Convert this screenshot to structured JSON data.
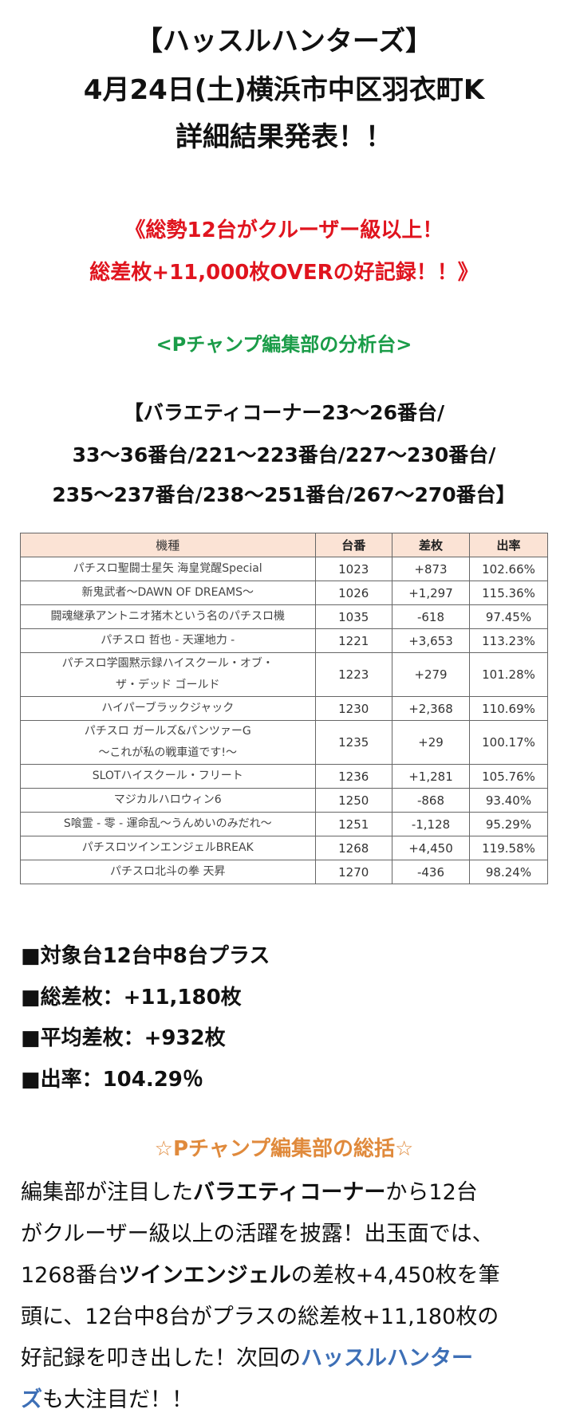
{
  "header": {
    "lines": [
      "【ハッスルハンターズ】",
      "4月24日(土)横浜市中区羽衣町K",
      "詳細結果発表！！"
    ]
  },
  "highlight": {
    "lines": [
      "《総勢12台がクルーザー級以上！",
      "総差枚+11,000枚OVERの好記録！！》"
    ]
  },
  "analysis_label": "<Pチャンプ編集部の分析台>",
  "corner": {
    "lines": [
      "【バラエティコーナー23～26番台/",
      "33～36番台/221～223番台/227～230番台/",
      "235～237番台/238～251番台/267～270番台】"
    ]
  },
  "table": {
    "columns": [
      "機種",
      "台番",
      "差枚",
      "出率"
    ],
    "rows": [
      {
        "name": [
          "パチスロ聖闘士星矢 海皇覚醒Special"
        ],
        "no": "1023",
        "diff": "+873",
        "rate": "102.66%"
      },
      {
        "name": [
          "新鬼武者～DAWN OF DREAMS～"
        ],
        "no": "1026",
        "diff": "+1,297",
        "rate": "115.36%"
      },
      {
        "name": [
          "闘魂継承アントニオ猪木という名のパチスロ機"
        ],
        "no": "1035",
        "diff": "-618",
        "rate": "97.45%"
      },
      {
        "name": [
          "パチスロ 哲也 - 天運地力 -"
        ],
        "no": "1221",
        "diff": "+3,653",
        "rate": "113.23%"
      },
      {
        "name": [
          "パチスロ学園黙示録ハイスクール・オブ・",
          "ザ・デッド ゴールド"
        ],
        "no": "1223",
        "diff": "+279",
        "rate": "101.28%"
      },
      {
        "name": [
          "ハイパーブラックジャック"
        ],
        "no": "1230",
        "diff": "+2,368",
        "rate": "110.69%"
      },
      {
        "name": [
          "パチスロ ガールズ&パンツァーG",
          "～これが私の戦車道です!～"
        ],
        "no": "1235",
        "diff": "+29",
        "rate": "100.17%"
      },
      {
        "name": [
          "SLOTハイスクール・フリート"
        ],
        "no": "1236",
        "diff": "+1,281",
        "rate": "105.76%"
      },
      {
        "name": [
          "マジカルハロウィン6"
        ],
        "no": "1250",
        "diff": "-868",
        "rate": "93.40%"
      },
      {
        "name": [
          "S喰霊 - 零 - 運命乱～うんめいのみだれ～"
        ],
        "no": "1251",
        "diff": "-1,128",
        "rate": "95.29%"
      },
      {
        "name": [
          "パチスロツインエンジェルBREAK"
        ],
        "no": "1268",
        "diff": "+4,450",
        "rate": "119.58%"
      },
      {
        "name": [
          "パチスロ北斗の拳 天昇"
        ],
        "no": "1270",
        "diff": "-436",
        "rate": "98.24%"
      }
    ]
  },
  "stats": [
    "■対象台12台中8台プラス",
    "■総差枚：+11,180枚",
    "■平均差枚：+932枚",
    "■出率：104.29％"
  ],
  "summary": {
    "title": "☆Pチャンプ編集部の総括☆",
    "lines": [
      [
        {
          "text": "編集部が注目した",
          "style": "plain"
        },
        {
          "text": "バラエティコーナー",
          "style": "bold"
        },
        {
          "text": "から12台",
          "style": "plain"
        }
      ],
      [
        {
          "text": "がクルーザー級以上の活躍を披露！出玉面では、",
          "style": "plain"
        }
      ],
      [
        {
          "text": "1268番台",
          "style": "plain"
        },
        {
          "text": "ツインエンジェル",
          "style": "bold"
        },
        {
          "text": "の差枚+4,450枚を筆",
          "style": "plain"
        }
      ],
      [
        {
          "text": "頭に、12台中8台がプラスの総差枚+11,180枚の",
          "style": "plain"
        }
      ],
      [
        {
          "text": "好記録を叩き出した！次回の",
          "style": "plain"
        },
        {
          "text": "ハッスルハンター",
          "style": "link"
        }
      ],
      [
        {
          "text": "ズ",
          "style": "link"
        },
        {
          "text": "も大注目だ！！",
          "style": "plain"
        }
      ]
    ]
  }
}
